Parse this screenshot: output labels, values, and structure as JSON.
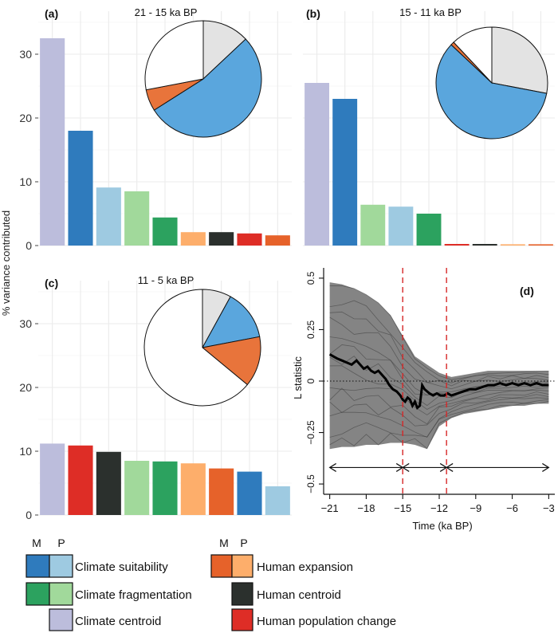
{
  "colors": {
    "climate_suit_M": "#2f7bbd",
    "climate_suit_P": "#9ecae1",
    "climate_frag_M": "#2ca25f",
    "climate_frag_P": "#a1d99b",
    "climate_centroid": "#bcbddc",
    "human_exp_M": "#e6622a",
    "human_exp_P": "#fdae6b",
    "human_centroid": "#2b302d",
    "human_pop": "#de2d26",
    "pie_slice_gray": "#e3e3e3",
    "pie_slice_blue": "#5aa6dd",
    "pie_slice_orange": "#e8743b",
    "pie_slice_white": "#ffffff"
  },
  "shared_ylabel": "% variance contributed",
  "chart_data": [
    {
      "id": "a",
      "type": "bar",
      "panel_label": "(a)",
      "title": "21 - 15 ka BP",
      "ylabel": "% variance contributed",
      "ylim": [
        0,
        35
      ],
      "yticks": [
        0,
        10,
        20,
        30
      ],
      "bars": [
        {
          "key": "climate_centroid",
          "value": 32.5
        },
        {
          "key": "climate_suit_M",
          "value": 18.0
        },
        {
          "key": "climate_suit_P",
          "value": 9.1
        },
        {
          "key": "climate_frag_P",
          "value": 8.5
        },
        {
          "key": "climate_frag_M",
          "value": 4.4
        },
        {
          "key": "human_exp_P",
          "value": 2.1
        },
        {
          "key": "human_centroid",
          "value": 2.1
        },
        {
          "key": "human_pop",
          "value": 1.9
        },
        {
          "key": "human_exp_M",
          "value": 1.6
        }
      ],
      "pie": [
        {
          "key": "pie_slice_gray",
          "value": 13
        },
        {
          "key": "pie_slice_blue",
          "value": 53
        },
        {
          "key": "pie_slice_orange",
          "value": 6
        },
        {
          "key": "pie_slice_white",
          "value": 28
        }
      ]
    },
    {
      "id": "b",
      "type": "bar",
      "panel_label": "(b)",
      "title": "15 - 11 ka BP",
      "ylim": [
        0,
        35
      ],
      "yticks": [
        0,
        10,
        20,
        30
      ],
      "bars": [
        {
          "key": "climate_centroid",
          "value": 25.5
        },
        {
          "key": "climate_suit_M",
          "value": 23.0
        },
        {
          "key": "climate_frag_P",
          "value": 6.4
        },
        {
          "key": "climate_suit_P",
          "value": 6.1
        },
        {
          "key": "climate_frag_M",
          "value": 5.0
        },
        {
          "key": "human_pop",
          "value": 0.25
        },
        {
          "key": "human_centroid",
          "value": 0.25
        },
        {
          "key": "human_exp_P",
          "value": 0.2
        },
        {
          "key": "human_exp_M",
          "value": 0.2
        }
      ],
      "pie": [
        {
          "key": "pie_slice_gray",
          "value": 28
        },
        {
          "key": "pie_slice_blue",
          "value": 59
        },
        {
          "key": "pie_slice_orange",
          "value": 1
        },
        {
          "key": "pie_slice_white",
          "value": 12
        }
      ]
    },
    {
      "id": "c",
      "type": "bar",
      "panel_label": "(c)",
      "title": "11 - 5 ka BP",
      "ylim": [
        0,
        35
      ],
      "yticks": [
        0,
        10,
        20,
        30
      ],
      "bars": [
        {
          "key": "climate_centroid",
          "value": 11.2
        },
        {
          "key": "human_pop",
          "value": 10.9
        },
        {
          "key": "human_centroid",
          "value": 9.9
        },
        {
          "key": "climate_frag_P",
          "value": 8.5
        },
        {
          "key": "climate_frag_M",
          "value": 8.4
        },
        {
          "key": "human_exp_P",
          "value": 8.1
        },
        {
          "key": "human_exp_M",
          "value": 7.3
        },
        {
          "key": "climate_suit_M",
          "value": 6.8
        },
        {
          "key": "climate_suit_P",
          "value": 4.5
        }
      ],
      "pie": [
        {
          "key": "pie_slice_gray",
          "value": 8
        },
        {
          "key": "pie_slice_blue",
          "value": 14
        },
        {
          "key": "pie_slice_orange",
          "value": 14
        },
        {
          "key": "pie_slice_white",
          "value": 64
        }
      ]
    },
    {
      "id": "d",
      "type": "line",
      "panel_label": "(d)",
      "xlabel": "Time (ka BP)",
      "ylabel": "L statistic",
      "xlim": [
        -21.5,
        -2.5
      ],
      "ylim": [
        -0.55,
        0.55
      ],
      "xticks": [
        -21,
        -18,
        -15,
        -12,
        -9,
        -6,
        -3
      ],
      "xtick_labels": [
        "−21",
        "−18",
        "−15",
        "−12",
        "−9",
        "−6",
        "−3"
      ],
      "yticks": [
        0.5,
        0.25,
        0,
        -0.25,
        -0.5
      ],
      "ytick_labels": [
        "0.5",
        "0.25",
        "0",
        "−0.25",
        "−0.5"
      ],
      "vlines": [
        -15,
        -11.4
      ],
      "hline": 0,
      "arrow_y": -0.42,
      "arrow_segments": [
        [
          -21,
          -15
        ],
        [
          -15,
          -11.4
        ],
        [
          -11.4,
          -3
        ]
      ],
      "median_series": {
        "x": [
          -21,
          -20.7,
          -20.4,
          -20,
          -19.6,
          -19.2,
          -18.8,
          -18.5,
          -18.2,
          -17.9,
          -17.6,
          -17.3,
          -17,
          -16.7,
          -16.4,
          -16.1,
          -15.8,
          -15.5,
          -15.2,
          -15,
          -14.8,
          -14.6,
          -14.4,
          -14.2,
          -14.0,
          -13.8,
          -13.6,
          -13.4,
          -13.2,
          -13.0,
          -12.8,
          -12.5,
          -12.2,
          -11.9,
          -11.6,
          -11.3,
          -11.0,
          -10.5,
          -10.0,
          -9.5,
          -9.0,
          -8.5,
          -8.0,
          -7.5,
          -7.0,
          -6.5,
          -6.0,
          -5.5,
          -5.0,
          -4.5,
          -4.0,
          -3.5,
          -3
        ],
        "y": [
          0.13,
          0.12,
          0.11,
          0.1,
          0.09,
          0.08,
          0.1,
          0.08,
          0.06,
          0.07,
          0.05,
          0.04,
          0.05,
          0.03,
          0.01,
          -0.02,
          -0.04,
          -0.05,
          -0.07,
          -0.09,
          -0.1,
          -0.08,
          -0.09,
          -0.12,
          -0.1,
          -0.13,
          -0.12,
          -0.02,
          -0.04,
          -0.05,
          -0.06,
          -0.07,
          -0.06,
          -0.07,
          -0.07,
          -0.06,
          -0.07,
          -0.06,
          -0.05,
          -0.04,
          -0.04,
          -0.03,
          -0.02,
          -0.02,
          -0.01,
          -0.02,
          -0.01,
          -0.02,
          -0.01,
          -0.02,
          -0.01,
          -0.02,
          -0.02
        ]
      },
      "band_upper": {
        "x": [
          -21,
          -20,
          -19,
          -18,
          -17,
          -16,
          -15,
          -14,
          -13,
          -12,
          -11,
          -10,
          -9,
          -8,
          -7,
          -6,
          -5,
          -4,
          -3
        ],
        "y": [
          0.48,
          0.47,
          0.45,
          0.42,
          0.38,
          0.32,
          0.22,
          0.12,
          0.08,
          0.04,
          0.02,
          0.03,
          0.04,
          0.05,
          0.05,
          0.05,
          0.05,
          0.05,
          0.05
        ]
      },
      "band_lower": {
        "x": [
          -21,
          -20,
          -19,
          -18,
          -17,
          -16,
          -15,
          -14,
          -13,
          -12,
          -11,
          -10,
          -9,
          -8,
          -7,
          -6,
          -5,
          -4,
          -3
        ],
        "y": [
          -0.33,
          -0.32,
          -0.32,
          -0.31,
          -0.31,
          -0.3,
          -0.3,
          -0.31,
          -0.33,
          -0.22,
          -0.18,
          -0.16,
          -0.15,
          -0.14,
          -0.13,
          -0.12,
          -0.12,
          -0.11,
          -0.11
        ]
      }
    }
  ],
  "legend": {
    "header_M": "M",
    "header_P": "P",
    "header_M2": "M",
    "header_P2": "P",
    "items": [
      {
        "label": "Climate suitability"
      },
      {
        "label": "Climate fragmentation"
      },
      {
        "label": "Climate centroid"
      },
      {
        "label": "Human expansion"
      },
      {
        "label": "Human centroid"
      },
      {
        "label": "Human population change"
      }
    ]
  }
}
